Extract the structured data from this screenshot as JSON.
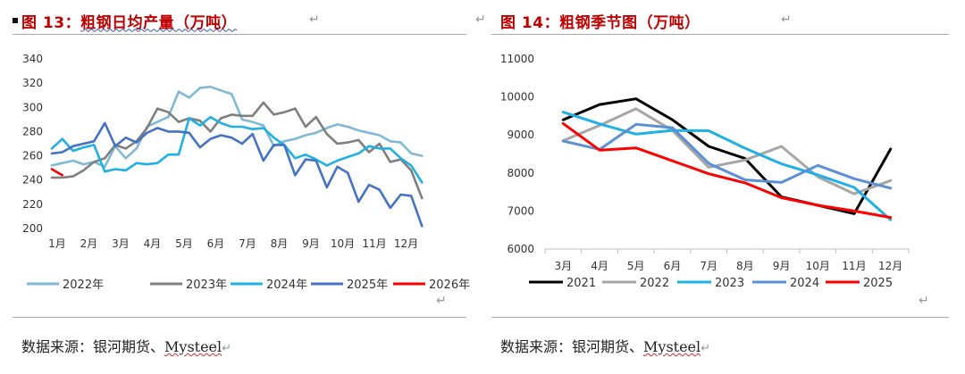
{
  "left": {
    "title_prefix": "图 13：",
    "title_main": "粗钢日均产量（万吨）",
    "source_text": "数据来源：银河期货、",
    "source_brand": "Mysteel",
    "return_glyph": "↵"
  },
  "right": {
    "title_prefix": "图 14：",
    "title_main": "粗钢季节图（万吨）",
    "source_text": "数据来源：银河期货、",
    "source_brand": "Mysteel",
    "return_glyph": "↵"
  },
  "chart_data": [
    {
      "type": "line",
      "title": "粗钢日均产量（万吨）",
      "xlabel": "",
      "ylabel": "",
      "ylim": [
        200,
        340
      ],
      "yticks": [
        200,
        220,
        240,
        260,
        280,
        300,
        320,
        340
      ],
      "xlim": [
        1,
        13
      ],
      "xticks": [
        1,
        2,
        3,
        4,
        5,
        6,
        7,
        8,
        9,
        10,
        11,
        12
      ],
      "xtick_labels": [
        "1月",
        "2月",
        "3月",
        "4月",
        "5月",
        "6月",
        "7月",
        "8月",
        "9月",
        "10月",
        "11月",
        "12月"
      ],
      "legend_position": "bottom",
      "series": [
        {
          "name": "2022年",
          "color": "#7fb9d8",
          "x": [
            1.0,
            1.33,
            1.67,
            2.0,
            2.33,
            2.67,
            3.0,
            3.33,
            3.67,
            4.0,
            4.33,
            4.67,
            5.0,
            5.33,
            5.67,
            6.0,
            6.33,
            6.67,
            7.0,
            7.33,
            7.67,
            8.0,
            8.33,
            8.67,
            9.0,
            9.33,
            9.67,
            10.0,
            10.33,
            10.67,
            11.0,
            11.33,
            11.67,
            12.0,
            12.33,
            12.67
          ],
          "y": [
            252,
            254,
            256,
            253,
            255,
            251,
            268,
            258,
            266,
            284,
            288,
            292,
            313,
            308,
            316,
            317,
            314,
            311,
            290,
            288,
            285,
            268,
            272,
            274,
            277,
            279,
            283,
            286,
            284,
            281,
            279,
            277,
            272,
            271,
            262,
            260
          ]
        },
        {
          "name": "2023年",
          "color": "#7f7f7f",
          "x": [
            1.0,
            1.33,
            1.67,
            2.0,
            2.33,
            2.67,
            3.0,
            3.33,
            3.67,
            4.0,
            4.33,
            4.67,
            5.0,
            5.33,
            5.67,
            6.0,
            6.33,
            6.67,
            7.0,
            7.33,
            7.67,
            8.0,
            8.33,
            8.67,
            9.0,
            9.33,
            9.67,
            10.0,
            10.33,
            10.67,
            11.0,
            11.33,
            11.67,
            12.0,
            12.33,
            12.67
          ],
          "y": [
            242,
            242,
            243,
            248,
            255,
            258,
            269,
            266,
            272,
            283,
            299,
            296,
            288,
            291,
            289,
            280,
            291,
            294,
            293,
            293,
            304,
            294,
            296,
            299,
            284,
            292,
            278,
            270,
            271,
            273,
            263,
            270,
            255,
            257,
            248,
            225
          ]
        },
        {
          "name": "2024年",
          "color": "#1fb0e6",
          "x": [
            1.0,
            1.33,
            1.67,
            2.0,
            2.33,
            2.67,
            3.0,
            3.33,
            3.67,
            4.0,
            4.33,
            4.67,
            5.0,
            5.33,
            5.67,
            6.0,
            6.33,
            6.67,
            7.0,
            7.33,
            7.67,
            8.0,
            8.33,
            8.67,
            9.0,
            9.33,
            9.67,
            10.0,
            10.33,
            10.67,
            11.0,
            11.33,
            11.67,
            12.0,
            12.33,
            12.67
          ],
          "y": [
            266,
            274,
            264,
            267,
            269,
            247,
            249,
            248,
            254,
            253,
            254,
            261,
            261,
            291,
            285,
            292,
            287,
            284,
            284,
            282,
            283,
            275,
            269,
            258,
            261,
            257,
            252,
            256,
            259,
            262,
            268,
            266,
            266,
            258,
            252,
            238
          ]
        },
        {
          "name": "2025年",
          "color": "#4472c4",
          "x": [
            1.0,
            1.33,
            1.67,
            2.0,
            2.33,
            2.67,
            3.0,
            3.33,
            3.67,
            4.0,
            4.33,
            4.67,
            5.0,
            5.33,
            5.67,
            6.0,
            6.33,
            6.67,
            7.0,
            7.33,
            7.67,
            8.0,
            8.33,
            8.67,
            9.0,
            9.33,
            9.67,
            10.0,
            10.33,
            10.67,
            11.0,
            11.33,
            11.67,
            12.0,
            12.33,
            12.67
          ],
          "y": [
            262,
            263,
            268,
            270,
            272,
            287,
            268,
            275,
            271,
            279,
            283,
            280,
            280,
            279,
            267,
            274,
            277,
            275,
            270,
            278,
            256,
            269,
            269,
            244,
            257,
            256,
            234,
            251,
            246,
            222,
            236,
            232,
            217,
            228,
            227,
            202
          ]
        },
        {
          "name": "2026年",
          "color": "#ff0000",
          "x": [
            1.0,
            1.33
          ],
          "y": [
            249,
            244
          ]
        }
      ]
    },
    {
      "type": "line",
      "title": "粗钢季节图（万吨）",
      "xlabel": "",
      "ylabel": "",
      "ylim": [
        6000,
        11000
      ],
      "yticks": [
        6000,
        7000,
        8000,
        9000,
        10000,
        11000
      ],
      "categories": [
        "3月",
        "4月",
        "5月",
        "6月",
        "7月",
        "8月",
        "9月",
        "10月",
        "11月",
        "12月"
      ],
      "legend_position": "bottom",
      "series": [
        {
          "name": "2021",
          "color": "#000000",
          "values": [
            9400,
            9800,
            9950,
            9400,
            8700,
            8380,
            7370,
            7150,
            6930,
            8630
          ]
        },
        {
          "name": "2022",
          "color": "#a6a6a6",
          "values": [
            8850,
            9250,
            9690,
            9120,
            8150,
            8340,
            8700,
            7900,
            7450,
            7800
          ]
        },
        {
          "name": "2023",
          "color": "#1fb0e6",
          "values": [
            9600,
            9290,
            9020,
            9120,
            9110,
            8650,
            8240,
            7950,
            7620,
            6770
          ]
        },
        {
          "name": "2024",
          "color": "#5b8fd6",
          "values": [
            8840,
            8620,
            9280,
            9190,
            8250,
            7820,
            7750,
            8200,
            7850,
            7600
          ]
        },
        {
          "name": "2025",
          "color": "#ff0000",
          "values": [
            9300,
            8600,
            8660,
            8320,
            7980,
            7740,
            7350,
            7150,
            7000,
            6830
          ]
        }
      ]
    }
  ]
}
